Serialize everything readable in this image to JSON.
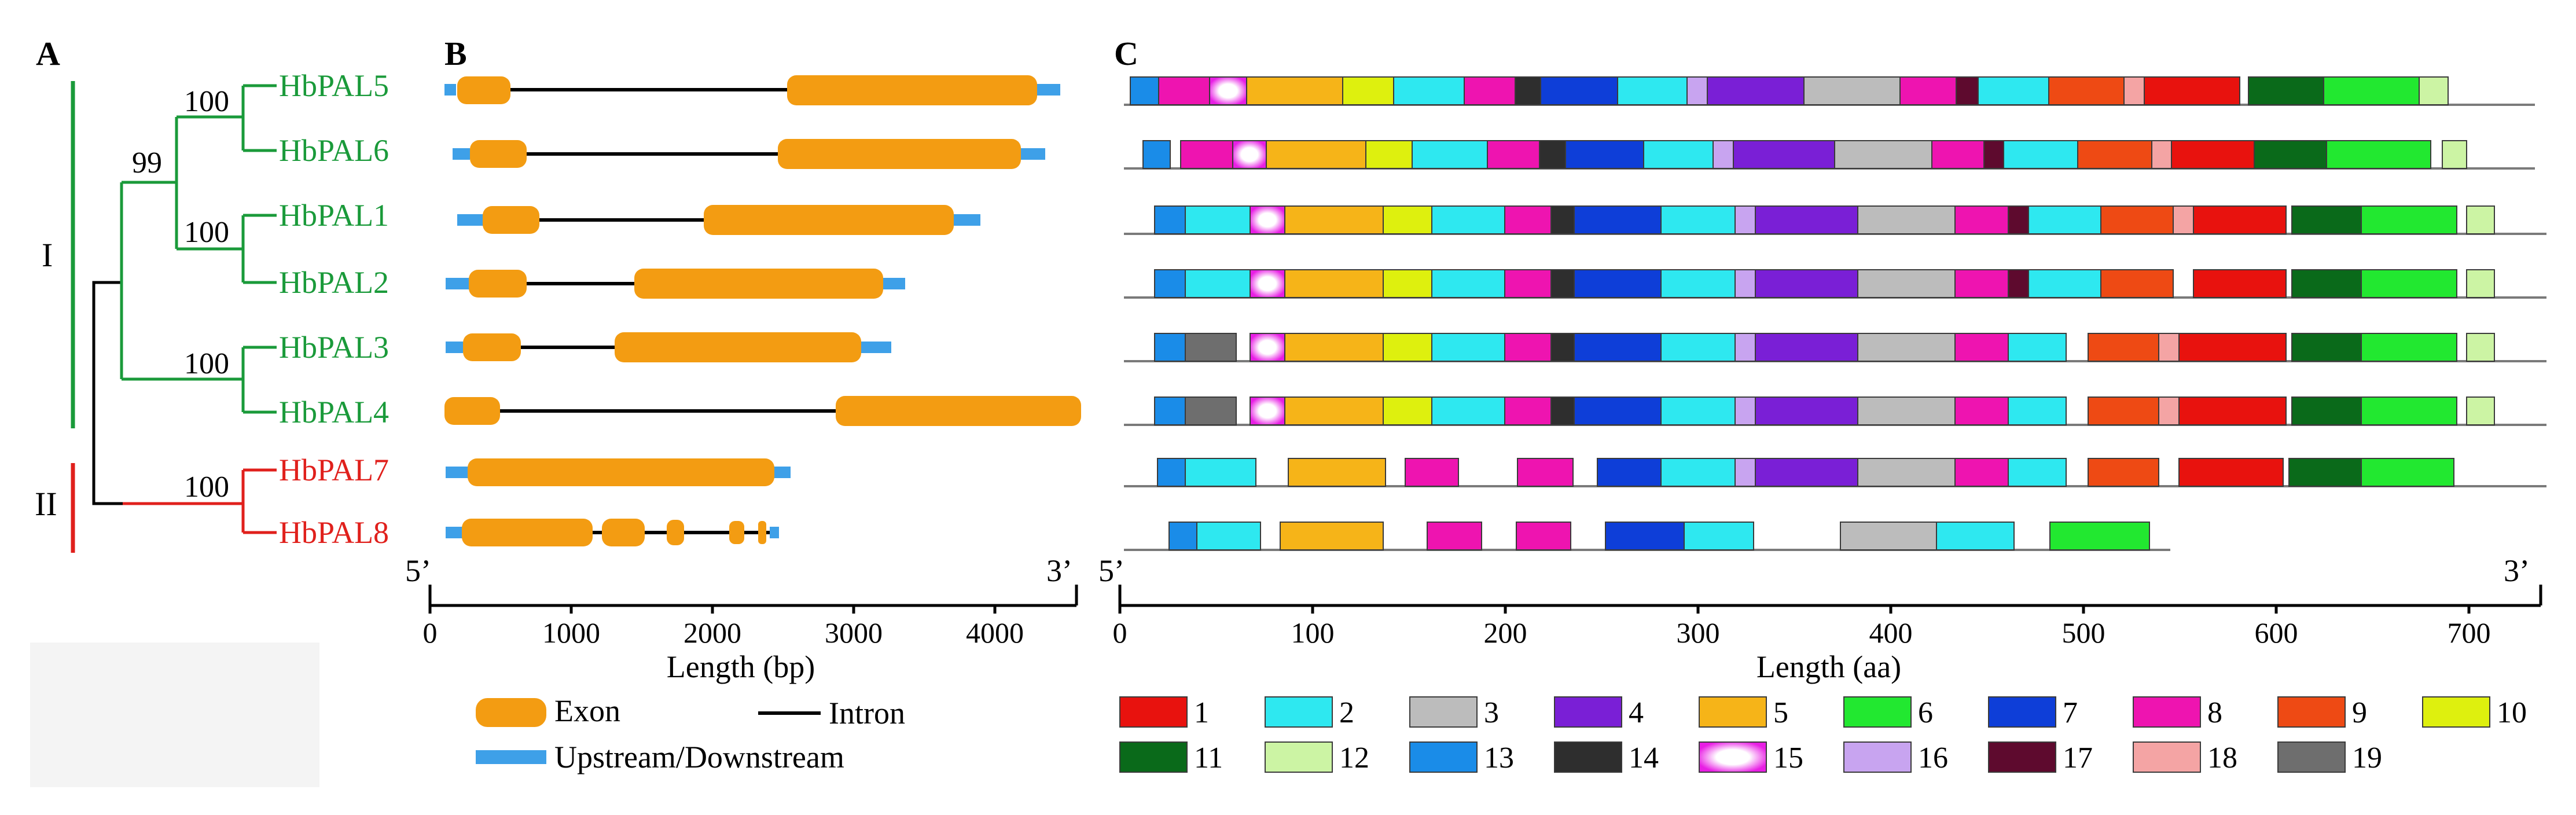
{
  "figure": {
    "panel_a": {
      "label": "A",
      "group_i": "I",
      "group_ii": "II",
      "bootstrap": [
        "100",
        "99",
        "100",
        "100",
        "100"
      ],
      "colors": {
        "group_i": "#1a9a3a",
        "group_ii": "#e0201c",
        "root": "#000000"
      }
    },
    "panel_b": {
      "label": "B",
      "five_prime": "5’",
      "three_prime": "3’",
      "axis_label": "Length (bp)",
      "ticks": [
        "0",
        "1000",
        "2000",
        "3000",
        "4000"
      ],
      "colors": {
        "exon": "#f39c12",
        "utr": "#3ea0e8",
        "intron": "#000000"
      }
    },
    "panel_c": {
      "label": "C",
      "five_prime": "5’",
      "three_prime": "3’",
      "axis_label": "Length (aa)",
      "ticks": [
        "0",
        "100",
        "200",
        "300",
        "400",
        "500",
        "600",
        "700"
      ]
    },
    "genes": [
      {
        "name": "HbPAL5",
        "group": "I"
      },
      {
        "name": "HbPAL6",
        "group": "I"
      },
      {
        "name": "HbPAL1",
        "group": "I"
      },
      {
        "name": "HbPAL2",
        "group": "I"
      },
      {
        "name": "HbPAL3",
        "group": "I"
      },
      {
        "name": "HbPAL4",
        "group": "I"
      },
      {
        "name": "HbPAL7",
        "group": "II"
      },
      {
        "name": "HbPAL8",
        "group": "II"
      }
    ],
    "gene_legend": {
      "exon": "Exon",
      "intron": "Intron",
      "utr": "Upstream/Downstream"
    },
    "motif_legend": [
      {
        "id": "1",
        "color": "#e8120e"
      },
      {
        "id": "2",
        "color": "#2ee8f0"
      },
      {
        "id": "3",
        "color": "#bcbcbc"
      },
      {
        "id": "4",
        "color": "#7a1fd6"
      },
      {
        "id": "5",
        "color": "#f6b418"
      },
      {
        "id": "6",
        "color": "#22e830"
      },
      {
        "id": "7",
        "color": "#0e3ed8"
      },
      {
        "id": "8",
        "color": "#ee14b0"
      },
      {
        "id": "9",
        "color": "#ee4a14"
      },
      {
        "id": "10",
        "color": "#def00e"
      },
      {
        "id": "11",
        "color": "#0a6a1a"
      },
      {
        "id": "12",
        "color": "#ccf4a4"
      },
      {
        "id": "13",
        "color": "#1a8ce8"
      },
      {
        "id": "14",
        "color": "#2e2e2e"
      },
      {
        "id": "15",
        "color": "#ec2ee8"
      },
      {
        "id": "16",
        "color": "#c8a4f0"
      },
      {
        "id": "17",
        "color": "#5e0a2e"
      },
      {
        "id": "18",
        "color": "#f4a4a4"
      },
      {
        "id": "19",
        "color": "#6e6e6e"
      }
    ]
  }
}
